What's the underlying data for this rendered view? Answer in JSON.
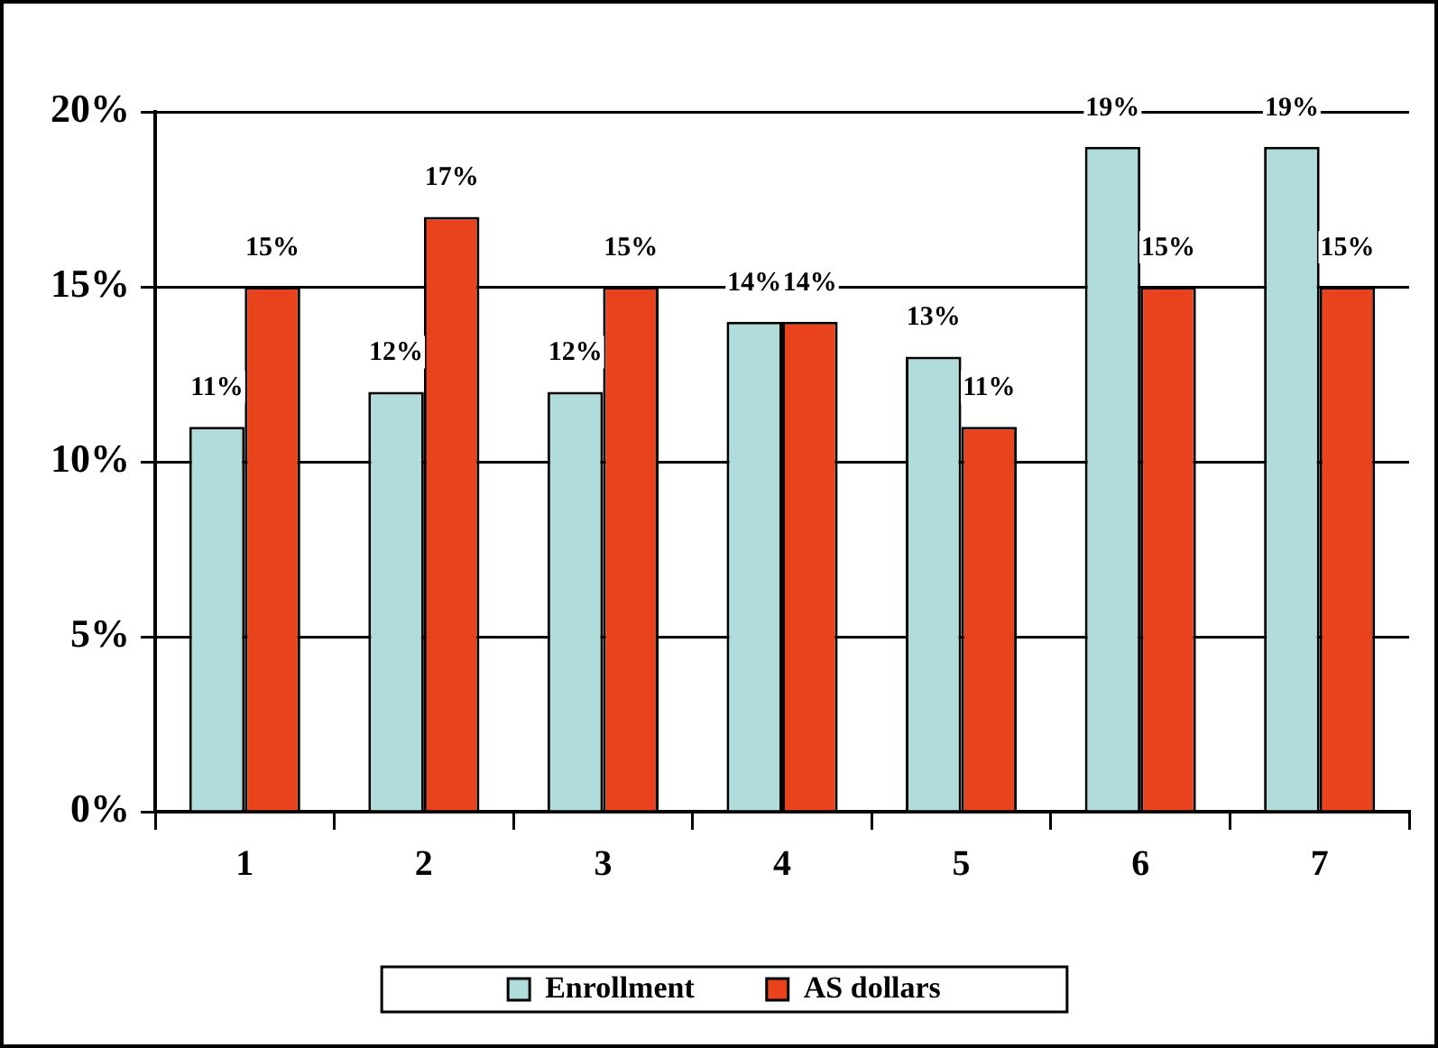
{
  "chart_data": {
    "type": "bar",
    "categories": [
      "1",
      "2",
      "3",
      "4",
      "5",
      "6",
      "7"
    ],
    "series": [
      {
        "name": "Enrollment",
        "color": "#b0dcdc",
        "values": [
          11,
          12,
          12,
          14,
          13,
          19,
          19
        ],
        "value_labels": [
          "11%",
          "12%",
          "12%",
          "14%",
          "13%",
          "19%",
          "19%"
        ]
      },
      {
        "name": "AS dollars",
        "color": "#e8431c",
        "values": [
          15,
          17,
          15,
          14,
          11,
          15,
          15
        ],
        "value_labels": [
          "15%",
          "17%",
          "15%",
          "14%",
          "11%",
          "15%",
          "15%"
        ]
      }
    ],
    "ylim": [
      0,
      20
    ],
    "yticks": [
      {
        "value": 0,
        "label": "0%"
      },
      {
        "value": 5,
        "label": "5%"
      },
      {
        "value": 10,
        "label": "10%"
      },
      {
        "value": 15,
        "label": "15%"
      },
      {
        "value": 20,
        "label": "20%"
      }
    ],
    "grid": "y",
    "legend": "bottom"
  }
}
